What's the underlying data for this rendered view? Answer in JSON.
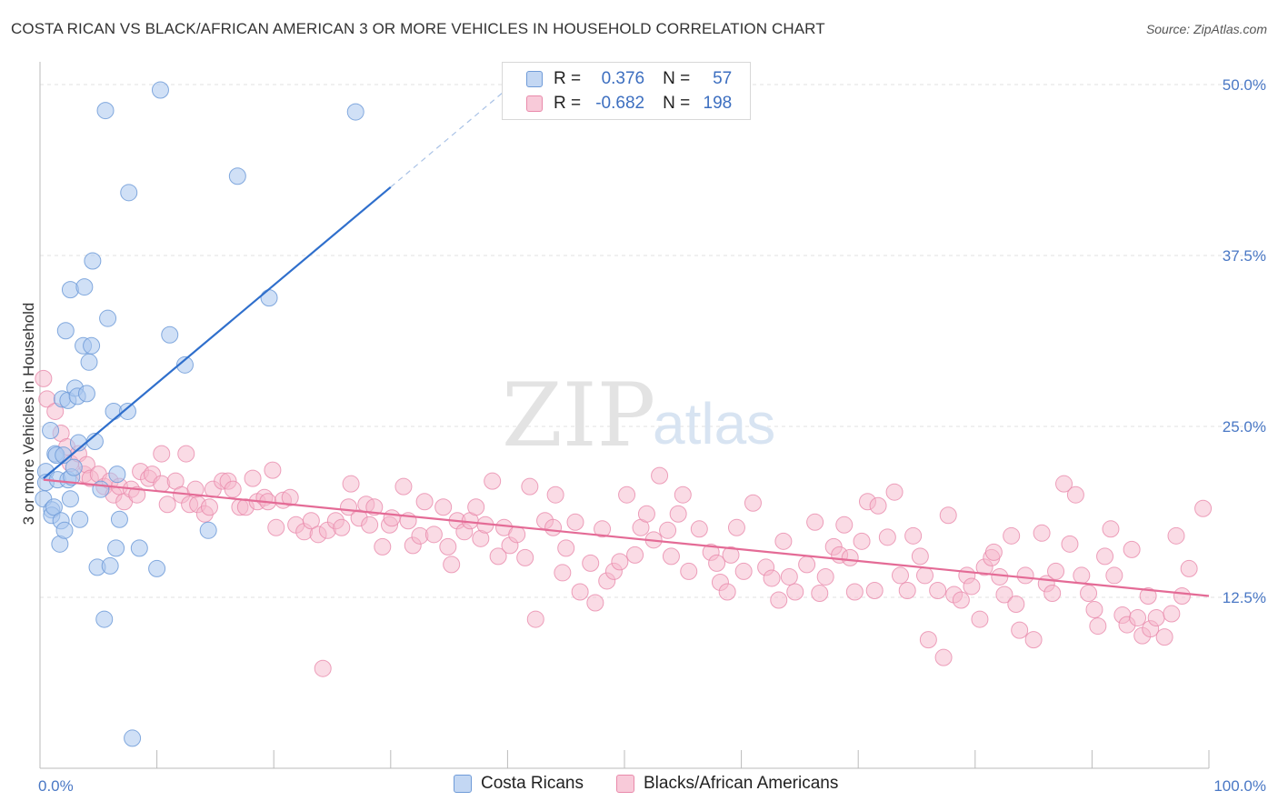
{
  "title": "COSTA RICAN VS BLACK/AFRICAN AMERICAN 3 OR MORE VEHICLES IN HOUSEHOLD CORRELATION CHART",
  "source": "Source: ZipAtlas.com",
  "watermark": {
    "zip": "ZIP",
    "atlas": "atlas"
  },
  "legend": {
    "r_label": "R =",
    "n_label": "N =",
    "series": [
      {
        "r": "0.376",
        "n": "57"
      },
      {
        "r": "-0.682",
        "n": "198"
      }
    ]
  },
  "bottom_legend": [
    "Costa Ricans",
    "Blacks/African Americans"
  ],
  "chart_data": {
    "type": "scatter",
    "title": "COSTA RICAN VS BLACK/AFRICAN AMERICAN 3 OR MORE VEHICLES IN HOUSEHOLD CORRELATION CHART",
    "xlabel": "",
    "ylabel": "3 or more Vehicles in Household",
    "xlim": [
      0,
      100
    ],
    "ylim": [
      0,
      50
    ],
    "x_tick_labels": [
      "0.0%",
      "100.0%"
    ],
    "y_ticks": [
      12.5,
      25.0,
      37.5,
      50.0
    ],
    "y_tick_labels": [
      "12.5%",
      "25.0%",
      "37.5%",
      "50.0%"
    ],
    "grid": "horizontal dashed",
    "legend_position": "top-center",
    "colors": {
      "costa_ricans": "#a9c6ee",
      "costa_ricans_stroke": "#6f9bd8",
      "costa_ricans_line": "#2f6fcc",
      "blacks": "#f5b8cc",
      "blacks_stroke": "#e98aab",
      "blacks_line": "#e46b96",
      "tick_text": "#4a78c5"
    },
    "series": [
      {
        "name": "Costa Ricans",
        "trend": {
          "x0": 0.3,
          "y0": 21.2,
          "x1": 30,
          "y1": 42.5,
          "dash_to_x": 40.4,
          "dash_to_y": 50.0
        },
        "points": [
          [
            0.3,
            19.7
          ],
          [
            0.5,
            21.7
          ],
          [
            0.5,
            20.9
          ],
          [
            0.9,
            24.7
          ],
          [
            1.0,
            18.9
          ],
          [
            1.0,
            18.5
          ],
          [
            1.2,
            19.1
          ],
          [
            1.3,
            23.0
          ],
          [
            1.4,
            22.9
          ],
          [
            1.5,
            21.1
          ],
          [
            1.7,
            16.4
          ],
          [
            1.8,
            18.1
          ],
          [
            1.9,
            27.0
          ],
          [
            2.0,
            22.9
          ],
          [
            2.1,
            17.4
          ],
          [
            2.2,
            32.0
          ],
          [
            2.4,
            26.9
          ],
          [
            2.4,
            21.1
          ],
          [
            2.6,
            35.0
          ],
          [
            2.6,
            19.7
          ],
          [
            2.7,
            21.3
          ],
          [
            2.9,
            22.0
          ],
          [
            3.0,
            27.8
          ],
          [
            3.2,
            27.2
          ],
          [
            3.3,
            23.8
          ],
          [
            3.4,
            18.2
          ],
          [
            3.7,
            30.9
          ],
          [
            3.8,
            35.2
          ],
          [
            4.0,
            27.4
          ],
          [
            4.2,
            29.7
          ],
          [
            4.4,
            30.9
          ],
          [
            4.5,
            37.1
          ],
          [
            4.7,
            23.9
          ],
          [
            4.9,
            14.7
          ],
          [
            5.2,
            20.4
          ],
          [
            5.5,
            10.9
          ],
          [
            5.6,
            48.1
          ],
          [
            5.8,
            32.9
          ],
          [
            6.0,
            14.8
          ],
          [
            6.3,
            26.1
          ],
          [
            6.5,
            16.1
          ],
          [
            6.6,
            21.5
          ],
          [
            6.8,
            18.2
          ],
          [
            7.5,
            26.1
          ],
          [
            7.6,
            42.1
          ],
          [
            7.9,
            2.2
          ],
          [
            8.5,
            16.1
          ],
          [
            10.0,
            14.6
          ],
          [
            10.3,
            49.6
          ],
          [
            11.1,
            31.7
          ],
          [
            12.4,
            29.5
          ],
          [
            14.4,
            17.4
          ],
          [
            16.9,
            43.3
          ],
          [
            19.6,
            34.4
          ],
          [
            27.0,
            48.0
          ]
        ]
      },
      {
        "name": "Blacks/African Americans",
        "trend": {
          "x0": 0.3,
          "y0": 21.1,
          "x1": 100,
          "y1": 12.6
        },
        "points": [
          [
            0.3,
            28.5
          ],
          [
            0.6,
            27.0
          ],
          [
            1.3,
            26.1
          ],
          [
            1.8,
            24.5
          ],
          [
            2.3,
            23.5
          ],
          [
            2.6,
            22.3
          ],
          [
            3.3,
            23.0
          ],
          [
            3.8,
            21.5
          ],
          [
            4.0,
            22.2
          ],
          [
            4.3,
            21.2
          ],
          [
            5.0,
            21.5
          ],
          [
            5.5,
            20.6
          ],
          [
            6.0,
            21.0
          ],
          [
            6.3,
            20.0
          ],
          [
            6.8,
            20.6
          ],
          [
            7.2,
            19.5
          ],
          [
            7.8,
            20.4
          ],
          [
            8.3,
            20.0
          ],
          [
            8.6,
            21.7
          ],
          [
            9.3,
            21.2
          ],
          [
            9.6,
            21.5
          ],
          [
            10.4,
            20.8
          ],
          [
            10.4,
            23.0
          ],
          [
            10.9,
            19.3
          ],
          [
            11.6,
            21.0
          ],
          [
            12.1,
            20.0
          ],
          [
            12.5,
            23.0
          ],
          [
            12.8,
            19.3
          ],
          [
            13.3,
            20.4
          ],
          [
            13.5,
            19.3
          ],
          [
            14.1,
            18.6
          ],
          [
            14.5,
            19.1
          ],
          [
            14.8,
            20.4
          ],
          [
            15.6,
            21.0
          ],
          [
            16.1,
            21.0
          ],
          [
            16.5,
            20.4
          ],
          [
            17.1,
            19.1
          ],
          [
            17.6,
            19.1
          ],
          [
            18.2,
            21.2
          ],
          [
            18.6,
            19.5
          ],
          [
            19.2,
            19.8
          ],
          [
            19.5,
            19.5
          ],
          [
            19.9,
            21.8
          ],
          [
            20.2,
            17.6
          ],
          [
            20.8,
            19.6
          ],
          [
            21.4,
            19.8
          ],
          [
            21.9,
            17.8
          ],
          [
            22.6,
            17.3
          ],
          [
            23.2,
            18.1
          ],
          [
            23.8,
            17.1
          ],
          [
            24.2,
            7.3
          ],
          [
            24.6,
            17.4
          ],
          [
            25.3,
            18.1
          ],
          [
            25.8,
            17.6
          ],
          [
            26.4,
            19.1
          ],
          [
            26.6,
            20.8
          ],
          [
            27.3,
            18.3
          ],
          [
            27.9,
            19.3
          ],
          [
            28.2,
            17.8
          ],
          [
            28.6,
            19.1
          ],
          [
            29.3,
            16.2
          ],
          [
            29.9,
            17.8
          ],
          [
            30.1,
            18.3
          ],
          [
            31.1,
            20.6
          ],
          [
            31.5,
            18.1
          ],
          [
            31.9,
            16.3
          ],
          [
            32.5,
            17.0
          ],
          [
            32.9,
            19.5
          ],
          [
            33.7,
            17.1
          ],
          [
            34.5,
            19.1
          ],
          [
            34.9,
            16.2
          ],
          [
            35.2,
            14.9
          ],
          [
            35.7,
            18.1
          ],
          [
            36.3,
            17.3
          ],
          [
            36.8,
            18.1
          ],
          [
            37.3,
            19.1
          ],
          [
            37.7,
            16.8
          ],
          [
            38.1,
            17.8
          ],
          [
            38.7,
            21.0
          ],
          [
            39.2,
            15.5
          ],
          [
            39.7,
            17.6
          ],
          [
            40.2,
            16.3
          ],
          [
            40.8,
            17.1
          ],
          [
            41.5,
            15.4
          ],
          [
            41.9,
            20.6
          ],
          [
            42.4,
            10.9
          ],
          [
            43.2,
            18.1
          ],
          [
            43.9,
            17.6
          ],
          [
            44.1,
            20.0
          ],
          [
            44.7,
            14.3
          ],
          [
            45.0,
            16.1
          ],
          [
            45.8,
            18.0
          ],
          [
            46.2,
            12.9
          ],
          [
            47.1,
            15.0
          ],
          [
            47.5,
            12.1
          ],
          [
            48.1,
            17.5
          ],
          [
            48.5,
            13.7
          ],
          [
            49.1,
            14.4
          ],
          [
            49.6,
            15.1
          ],
          [
            50.2,
            20.0
          ],
          [
            50.9,
            15.6
          ],
          [
            51.4,
            17.6
          ],
          [
            51.9,
            18.6
          ],
          [
            52.5,
            16.7
          ],
          [
            53.0,
            21.4
          ],
          [
            53.7,
            17.4
          ],
          [
            54.0,
            15.5
          ],
          [
            54.6,
            18.6
          ],
          [
            55.0,
            20.0
          ],
          [
            55.5,
            14.4
          ],
          [
            56.4,
            17.5
          ],
          [
            57.4,
            15.8
          ],
          [
            57.9,
            15.0
          ],
          [
            58.2,
            13.6
          ],
          [
            58.8,
            12.9
          ],
          [
            59.1,
            15.6
          ],
          [
            59.6,
            17.6
          ],
          [
            60.2,
            14.4
          ],
          [
            61.0,
            19.4
          ],
          [
            62.1,
            14.7
          ],
          [
            62.6,
            13.9
          ],
          [
            63.2,
            12.3
          ],
          [
            63.6,
            16.6
          ],
          [
            64.1,
            14.0
          ],
          [
            64.6,
            12.9
          ],
          [
            65.6,
            14.9
          ],
          [
            66.3,
            18.0
          ],
          [
            66.7,
            12.8
          ],
          [
            67.2,
            14.0
          ],
          [
            67.9,
            16.2
          ],
          [
            68.4,
            15.6
          ],
          [
            68.8,
            17.8
          ],
          [
            69.3,
            15.4
          ],
          [
            69.7,
            12.9
          ],
          [
            70.3,
            16.6
          ],
          [
            70.8,
            19.5
          ],
          [
            71.4,
            13.0
          ],
          [
            71.7,
            19.2
          ],
          [
            72.5,
            16.9
          ],
          [
            73.1,
            20.2
          ],
          [
            73.6,
            14.1
          ],
          [
            74.2,
            13.0
          ],
          [
            74.7,
            17.0
          ],
          [
            75.3,
            15.5
          ],
          [
            75.7,
            14.1
          ],
          [
            76.0,
            9.4
          ],
          [
            76.8,
            13.0
          ],
          [
            77.3,
            8.1
          ],
          [
            77.7,
            18.5
          ],
          [
            78.2,
            12.7
          ],
          [
            78.8,
            12.3
          ],
          [
            79.3,
            14.1
          ],
          [
            79.7,
            13.3
          ],
          [
            80.4,
            10.9
          ],
          [
            80.8,
            14.7
          ],
          [
            81.4,
            15.4
          ],
          [
            81.6,
            15.8
          ],
          [
            82.1,
            14.0
          ],
          [
            82.5,
            12.7
          ],
          [
            83.1,
            17.0
          ],
          [
            83.5,
            12.0
          ],
          [
            83.8,
            10.1
          ],
          [
            84.3,
            14.1
          ],
          [
            85.0,
            9.4
          ],
          [
            85.7,
            17.2
          ],
          [
            86.1,
            13.5
          ],
          [
            86.6,
            12.8
          ],
          [
            86.9,
            14.4
          ],
          [
            87.6,
            20.8
          ],
          [
            88.1,
            16.4
          ],
          [
            88.6,
            20.0
          ],
          [
            89.1,
            14.1
          ],
          [
            89.7,
            12.8
          ],
          [
            90.2,
            11.6
          ],
          [
            90.5,
            10.4
          ],
          [
            91.1,
            15.5
          ],
          [
            91.6,
            17.5
          ],
          [
            91.9,
            14.1
          ],
          [
            92.6,
            11.2
          ],
          [
            93.0,
            10.5
          ],
          [
            93.4,
            16.0
          ],
          [
            93.9,
            11.0
          ],
          [
            94.3,
            9.7
          ],
          [
            94.8,
            12.6
          ],
          [
            95.0,
            10.2
          ],
          [
            95.5,
            11.0
          ],
          [
            96.2,
            9.6
          ],
          [
            96.8,
            11.3
          ],
          [
            97.2,
            17.0
          ],
          [
            97.7,
            12.6
          ],
          [
            98.3,
            14.6
          ],
          [
            99.5,
            19.0
          ]
        ]
      }
    ]
  }
}
